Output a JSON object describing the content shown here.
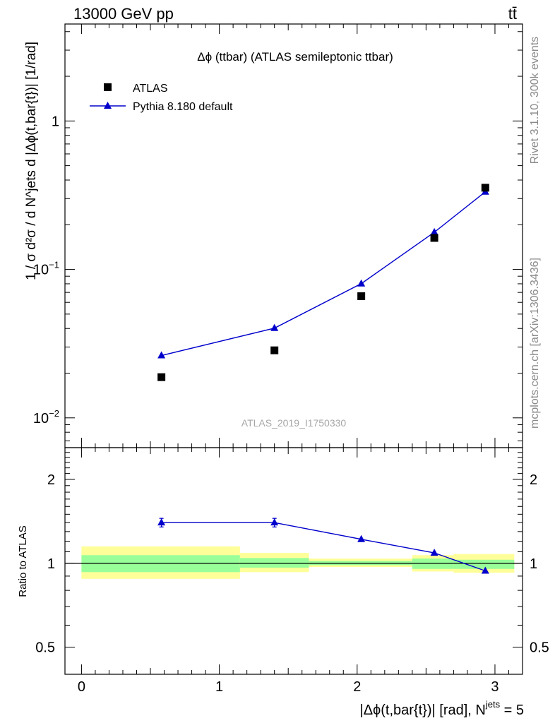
{
  "header": {
    "energy_label": "13000 GeV pp",
    "process_label": "tt̄"
  },
  "side_labels": {
    "rivet": "Rivet 3.1.10,  300k events",
    "source": "mcplots.cern.ch [arXiv:1306.3436]"
  },
  "colors": {
    "data_marker": "#000000",
    "mc_line": "#0000cc",
    "band_inner": "#99ff99",
    "band_outer": "#ffff99"
  },
  "chart_data": [
    {
      "type": "scatter",
      "panel": "main",
      "title": "Δϕ (ttbar) (ATLAS semileptonic ttbar)",
      "ylabel": "1 / σ d²σ / d N^jets d |Δϕ(t,bar{t})| [1/rad]",
      "xlabel": "",
      "yscale": "log",
      "xlim": [
        -0.12,
        3.2
      ],
      "ylim": [
        0.0063,
        4.5
      ],
      "y_ticks": [
        {
          "v": 0.01,
          "m": "10",
          "e": "−2"
        },
        {
          "v": 0.1,
          "m": "10",
          "e": "−1"
        },
        {
          "v": 1,
          "m": "1",
          "e": ""
        }
      ],
      "analysis_label": "ATLAS_2019_I1750330",
      "legend": {
        "position": "top-left",
        "entries": [
          "ATLAS",
          "Pythia 8.180 default"
        ]
      },
      "series": [
        {
          "name": "ATLAS",
          "kind": "data",
          "x": [
            0.58,
            1.4,
            2.03,
            2.56,
            2.93
          ],
          "values": [
            0.0188,
            0.0285,
            0.066,
            0.163,
            0.355
          ]
        },
        {
          "name": "Pythia 8.180 default",
          "kind": "mc",
          "x": [
            0.58,
            1.4,
            2.03,
            2.56,
            2.93
          ],
          "values": [
            0.0263,
            0.0402,
            0.0802,
            0.178,
            0.333
          ]
        }
      ]
    },
    {
      "type": "line",
      "panel": "ratio",
      "ylabel": "Ratio to ATLAS",
      "xlabel": "|Δϕ(t,bar{t})| [rad], N^jets = 5",
      "xlabel_base": "|Δϕ(t,bar{t})| [rad], N",
      "xlabel_sup": "jets",
      "xlabel_tail": " = 5",
      "yscale": "log",
      "xlim": [
        -0.12,
        3.2
      ],
      "ylim": [
        0.4,
        2.6
      ],
      "x_ticks": [
        0,
        1,
        2,
        3
      ],
      "y_ticks": [
        0.5,
        1,
        2
      ],
      "reference_line": 1,
      "bands": [
        {
          "x0": 0.0,
          "x1": 1.15,
          "inner": [
            0.93,
            1.07
          ],
          "outer": [
            0.88,
            1.15
          ]
        },
        {
          "x0": 1.15,
          "x1": 1.65,
          "inner": [
            0.965,
            1.045
          ],
          "outer": [
            0.93,
            1.09
          ]
        },
        {
          "x0": 1.65,
          "x1": 2.4,
          "inner": [
            0.985,
            1.02
          ],
          "outer": [
            0.97,
            1.04
          ]
        },
        {
          "x0": 2.4,
          "x1": 2.7,
          "inner": [
            0.955,
            1.04
          ],
          "outer": [
            0.935,
            1.07
          ]
        },
        {
          "x0": 2.7,
          "x1": 3.14,
          "inner": [
            0.955,
            1.03
          ],
          "outer": [
            0.925,
            1.08
          ]
        }
      ],
      "series": [
        {
          "name": "Pythia 8.180 default",
          "x": [
            0.58,
            1.4,
            2.03,
            2.56,
            2.93
          ],
          "values": [
            1.4,
            1.4,
            1.22,
            1.09,
            0.94
          ],
          "err": [
            0.05,
            0.05,
            0.0,
            0.0,
            0.0
          ]
        }
      ]
    }
  ]
}
